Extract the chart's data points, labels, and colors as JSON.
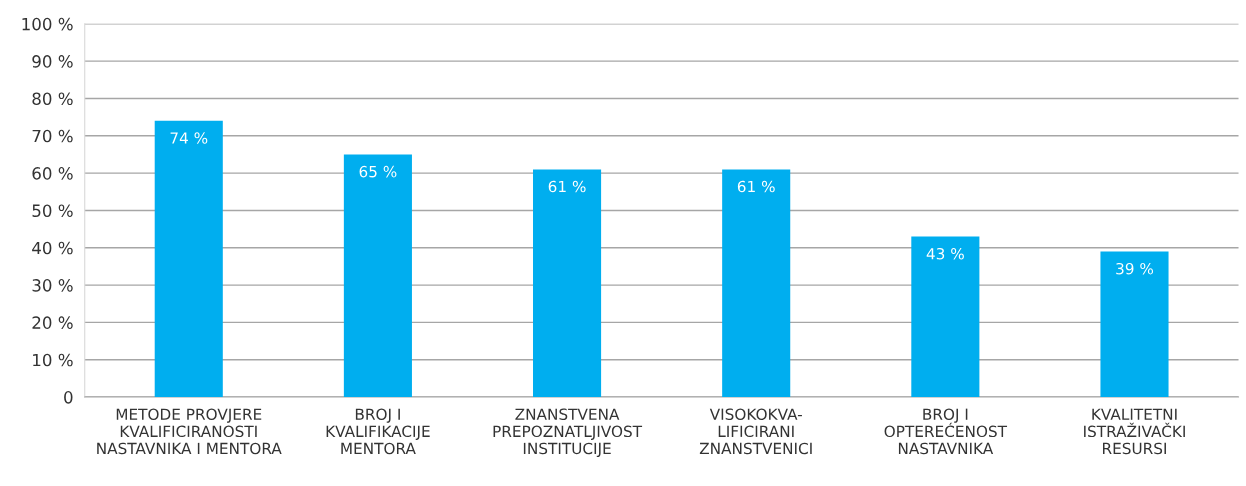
{
  "chart_data": {
    "type": "bar",
    "categories": [
      "METODE PROVJERE\nKVALIFICIRANOSTI\nNASTAVNIKA I MENTORA",
      "BROJ I\nKVALIFIKACIJE\nMENTORA",
      "ZNANSTVENA\nPREPOZNATLJIVOST\nINSTITUCIJE",
      "VISOKOKVA-\nLIFICIRANI\nZNANSTVENICI",
      "BROJ I\nOPTEREĆENOST\nNASTAVNIKA",
      "KVALITETNI\nISTRAŽIVAČKI\nRESURSI"
    ],
    "values": [
      74,
      65,
      61,
      61,
      43,
      39
    ],
    "value_labels": [
      "74 %",
      "65 %",
      "61 %",
      "61 %",
      "43 %",
      "39 %"
    ],
    "color": "#00aeef",
    "ylim": [
      0,
      100
    ],
    "yticks": [
      {
        "value": 0,
        "label": "0"
      },
      {
        "value": 10,
        "label": "10 %"
      },
      {
        "value": 20,
        "label": "20 %"
      },
      {
        "value": 30,
        "label": "30 %"
      },
      {
        "value": 40,
        "label": "40 %"
      },
      {
        "value": 50,
        "label": "50 %"
      },
      {
        "value": 60,
        "label": "60 %"
      },
      {
        "value": 70,
        "label": "70 %"
      },
      {
        "value": 80,
        "label": "80 %"
      },
      {
        "value": 90,
        "label": "90 %"
      },
      {
        "value": 100,
        "label": "100 %"
      }
    ],
    "grid": "y",
    "legend": false
  }
}
